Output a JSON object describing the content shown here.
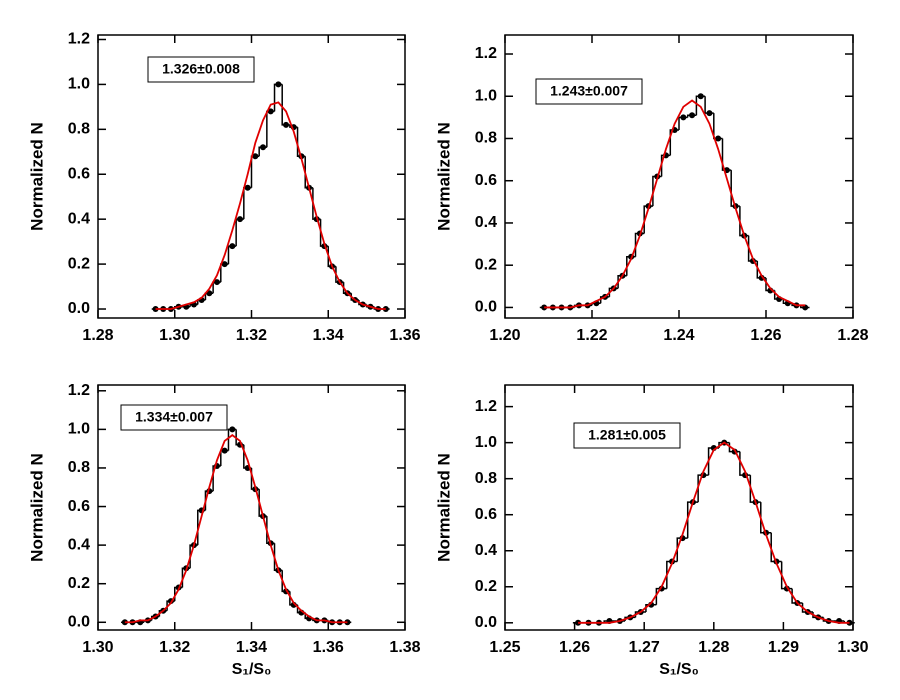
{
  "chart_data": [
    {
      "type": "histogram",
      "ylabel": "Normalized N",
      "annotation": "1.326±0.008",
      "xlim": [
        1.28,
        1.36
      ],
      "ylim": [
        -0.04,
        1.22
      ],
      "xticks": [
        1.28,
        {
          "value": 1.3,
          "label": "1.30"
        },
        1.32,
        1.34,
        1.36
      ],
      "yticks": [
        {
          "value": 0,
          "label": "0.0"
        },
        0.2,
        0.4,
        0.6,
        0.8,
        {
          "value": 1,
          "label": "1.0"
        },
        1.2
      ],
      "histogram": {
        "color": "#000000",
        "x": [
          1.295,
          1.297,
          1.299,
          1.301,
          1.303,
          1.305,
          1.307,
          1.309,
          1.311,
          1.313,
          1.315,
          1.317,
          1.319,
          1.321,
          1.323,
          1.325,
          1.327,
          1.329,
          1.331,
          1.333,
          1.335,
          1.337,
          1.339,
          1.341,
          1.343,
          1.345,
          1.347,
          1.349,
          1.351,
          1.353,
          1.355
        ],
        "values": [
          0,
          0,
          0,
          0.01,
          0.01,
          0.02,
          0.04,
          0.07,
          0.12,
          0.2,
          0.28,
          0.4,
          0.54,
          0.68,
          0.72,
          0.88,
          1.0,
          0.82,
          0.81,
          0.68,
          0.54,
          0.4,
          0.28,
          0.19,
          0.12,
          0.07,
          0.04,
          0.02,
          0.01,
          0,
          0
        ]
      },
      "fit": {
        "color": "#e00000",
        "values": [
          0,
          0,
          0,
          0.01,
          0.02,
          0.03,
          0.05,
          0.09,
          0.15,
          0.24,
          0.35,
          0.47,
          0.6,
          0.74,
          0.84,
          0.91,
          0.92,
          0.88,
          0.79,
          0.67,
          0.54,
          0.41,
          0.29,
          0.19,
          0.12,
          0.07,
          0.04,
          0.02,
          0.01,
          0,
          0
        ]
      }
    },
    {
      "type": "histogram",
      "ylabel": "Normalized N",
      "annotation": "1.243±0.007",
      "xlim": [
        1.2,
        1.28
      ],
      "ylim": [
        -0.05,
        1.29
      ],
      "xticks": [
        {
          "value": 1.2,
          "label": "1.20"
        },
        1.22,
        1.24,
        1.26,
        1.28
      ],
      "yticks": [
        {
          "value": 0,
          "label": "0.0"
        },
        0.2,
        0.4,
        0.6,
        0.8,
        {
          "value": 1,
          "label": "1.0"
        },
        1.2
      ],
      "histogram": {
        "color": "#000000",
        "x": [
          1.209,
          1.211,
          1.213,
          1.215,
          1.217,
          1.219,
          1.221,
          1.223,
          1.225,
          1.227,
          1.229,
          1.231,
          1.233,
          1.235,
          1.237,
          1.239,
          1.241,
          1.243,
          1.245,
          1.247,
          1.249,
          1.251,
          1.253,
          1.255,
          1.257,
          1.259,
          1.261,
          1.263,
          1.265,
          1.267,
          1.269
        ],
        "values": [
          0,
          0,
          0,
          0,
          0.01,
          0.01,
          0.02,
          0.05,
          0.09,
          0.15,
          0.24,
          0.35,
          0.48,
          0.62,
          0.72,
          0.84,
          0.9,
          0.91,
          1.0,
          0.92,
          0.8,
          0.65,
          0.48,
          0.34,
          0.22,
          0.14,
          0.08,
          0.04,
          0.02,
          0.01,
          0
        ]
      },
      "fit": {
        "color": "#e00000",
        "values": [
          0,
          0,
          0,
          0,
          0.01,
          0.01,
          0.03,
          0.05,
          0.09,
          0.15,
          0.23,
          0.34,
          0.47,
          0.61,
          0.75,
          0.87,
          0.95,
          0.98,
          0.95,
          0.87,
          0.75,
          0.61,
          0.47,
          0.34,
          0.23,
          0.15,
          0.09,
          0.05,
          0.03,
          0.01,
          0.01
        ]
      }
    },
    {
      "type": "histogram",
      "ylabel": "Normalized N",
      "xlabel": "S₁/S₀",
      "annotation": "1.334±0.007",
      "xlim": [
        1.3,
        1.38
      ],
      "ylim": [
        -0.04,
        1.23
      ],
      "xticks": [
        {
          "value": 1.3,
          "label": "1.30"
        },
        1.32,
        1.34,
        1.36,
        1.38
      ],
      "yticks": [
        {
          "value": 0,
          "label": "0.0"
        },
        0.2,
        0.4,
        0.6,
        0.8,
        {
          "value": 1,
          "label": "1.0"
        },
        1.2
      ],
      "histogram": {
        "color": "#000000",
        "x": [
          1.307,
          1.309,
          1.311,
          1.313,
          1.315,
          1.317,
          1.319,
          1.321,
          1.323,
          1.325,
          1.327,
          1.329,
          1.331,
          1.333,
          1.335,
          1.337,
          1.339,
          1.341,
          1.343,
          1.345,
          1.347,
          1.349,
          1.351,
          1.353,
          1.355,
          1.357,
          1.359,
          1.361,
          1.363,
          1.365
        ],
        "values": [
          0,
          0,
          0,
          0.01,
          0.03,
          0.06,
          0.11,
          0.18,
          0.28,
          0.4,
          0.58,
          0.68,
          0.81,
          0.89,
          1.0,
          0.92,
          0.8,
          0.69,
          0.55,
          0.41,
          0.27,
          0.16,
          0.09,
          0.05,
          0.02,
          0.01,
          0.01,
          0,
          0,
          0
        ]
      },
      "fit": {
        "color": "#e00000",
        "values": [
          0,
          0,
          0.01,
          0.01,
          0.03,
          0.06,
          0.1,
          0.17,
          0.27,
          0.4,
          0.55,
          0.7,
          0.84,
          0.94,
          0.97,
          0.94,
          0.84,
          0.7,
          0.55,
          0.4,
          0.27,
          0.17,
          0.1,
          0.06,
          0.03,
          0.01,
          0.01,
          0,
          0,
          0
        ]
      }
    },
    {
      "type": "histogram",
      "ylabel": "Normalized N",
      "xlabel": "S₁/S₀",
      "annotation": "1.281±0.005",
      "xlim": [
        1.25,
        1.3
      ],
      "ylim": [
        -0.04,
        1.32
      ],
      "xticks": [
        1.25,
        {
          "value": 1.26,
          "label": "1.26"
        },
        1.27,
        1.28,
        1.29,
        {
          "value": 1.3,
          "label": "1.30"
        }
      ],
      "yticks": [
        {
          "value": 0,
          "label": "0.0"
        },
        0.2,
        0.4,
        0.6,
        0.8,
        {
          "value": 1,
          "label": "1.0"
        },
        1.2
      ],
      "histogram": {
        "color": "#000000",
        "x": [
          1.2605,
          1.262,
          1.2635,
          1.265,
          1.2665,
          1.268,
          1.2695,
          1.271,
          1.2725,
          1.274,
          1.2755,
          1.277,
          1.2785,
          1.28,
          1.2815,
          1.283,
          1.2845,
          1.286,
          1.2875,
          1.289,
          1.2905,
          1.292,
          1.2935,
          1.295,
          1.2965,
          1.298,
          1.2995
        ],
        "values": [
          0,
          0,
          0,
          0.01,
          0.01,
          0.03,
          0.06,
          0.1,
          0.19,
          0.34,
          0.47,
          0.67,
          0.82,
          0.97,
          1.0,
          0.95,
          0.82,
          0.67,
          0.5,
          0.34,
          0.19,
          0.11,
          0.06,
          0.03,
          0.01,
          0.01,
          0
        ]
      },
      "fit": {
        "color": "#e00000",
        "values": [
          0,
          0,
          0,
          0,
          0.01,
          0.03,
          0.06,
          0.11,
          0.2,
          0.33,
          0.49,
          0.67,
          0.84,
          0.96,
          1.0,
          0.96,
          0.84,
          0.67,
          0.49,
          0.33,
          0.2,
          0.11,
          0.06,
          0.03,
          0.01,
          0,
          0
        ]
      }
    }
  ]
}
